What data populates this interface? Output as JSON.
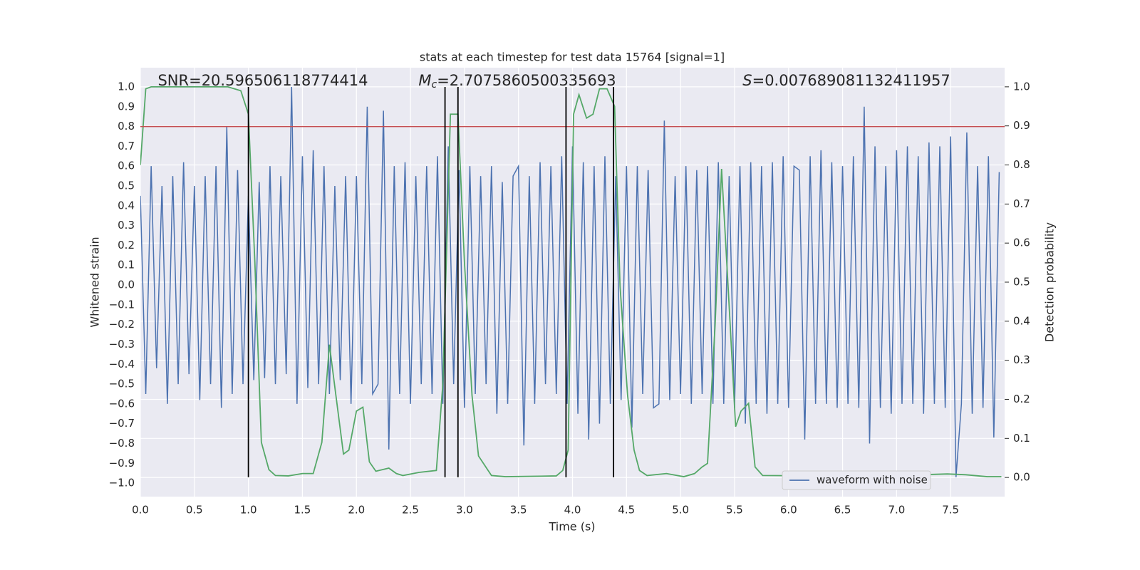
{
  "chart_data": {
    "type": "line",
    "title": "stats at each timestep for test data 15764 [signal=1]",
    "x_label": "Time (s)",
    "y_label": "Whitened strain",
    "y2_label": "Detection probability",
    "xlim": [
      0,
      8.0
    ],
    "ylim": [
      -1.068,
      1.097
    ],
    "y2lim": [
      -0.049,
      1.049
    ],
    "xticks": [
      {
        "value": 0,
        "label": "0.0"
      },
      {
        "value": 0.5,
        "label": "0.5"
      },
      {
        "value": 1,
        "label": "1.0"
      },
      {
        "value": 1.5,
        "label": "1.5"
      },
      {
        "value": 2,
        "label": "2.0"
      },
      {
        "value": 2.5,
        "label": "2.5"
      },
      {
        "value": 3,
        "label": "3.0"
      },
      {
        "value": 3.5,
        "label": "3.5"
      },
      {
        "value": 4,
        "label": "4.0"
      },
      {
        "value": 4.5,
        "label": "4.5"
      },
      {
        "value": 5,
        "label": "5.0"
      },
      {
        "value": 5.5,
        "label": "5.5"
      },
      {
        "value": 6,
        "label": "6.0"
      },
      {
        "value": 6.5,
        "label": "6.5"
      },
      {
        "value": 7,
        "label": "7.0"
      },
      {
        "value": 7.5,
        "label": "7.5"
      }
    ],
    "yticks": [
      {
        "value": -1,
        "label": "−1.0"
      },
      {
        "value": -0.9,
        "label": "−0.9"
      },
      {
        "value": -0.8,
        "label": "−0.8"
      },
      {
        "value": -0.7,
        "label": "−0.7"
      },
      {
        "value": -0.6,
        "label": "−0.6"
      },
      {
        "value": -0.5,
        "label": "−0.5"
      },
      {
        "value": -0.4,
        "label": "−0.4"
      },
      {
        "value": -0.3,
        "label": "−0.3"
      },
      {
        "value": -0.2,
        "label": "−0.2"
      },
      {
        "value": -0.1,
        "label": "−0.1"
      },
      {
        "value": 0,
        "label": "0.0"
      },
      {
        "value": 0.1,
        "label": "0.1"
      },
      {
        "value": 0.2,
        "label": "0.2"
      },
      {
        "value": 0.3,
        "label": "0.3"
      },
      {
        "value": 0.4,
        "label": "0.4"
      },
      {
        "value": 0.5,
        "label": "0.5"
      },
      {
        "value": 0.6,
        "label": "0.6"
      },
      {
        "value": 0.7,
        "label": "0.7"
      },
      {
        "value": 0.8,
        "label": "0.8"
      },
      {
        "value": 0.9,
        "label": "0.9"
      },
      {
        "value": 1,
        "label": "1.0"
      }
    ],
    "y2ticks": [
      {
        "value": 0,
        "label": "0.0"
      },
      {
        "value": 0.1,
        "label": "0.1"
      },
      {
        "value": 0.2,
        "label": "0.2"
      },
      {
        "value": 0.3,
        "label": "0.3"
      },
      {
        "value": 0.4,
        "label": "0.4"
      },
      {
        "value": 0.5,
        "label": "0.5"
      },
      {
        "value": 0.6,
        "label": "0.6"
      },
      {
        "value": 0.7,
        "label": "0.7"
      },
      {
        "value": 0.8,
        "label": "0.8"
      },
      {
        "value": 0.9,
        "label": "0.9"
      },
      {
        "value": 1,
        "label": "1.0"
      }
    ],
    "grid": true,
    "background": "#eaeaf2",
    "legend_loc": "lower right",
    "annotations": [
      {
        "text": "SNR=20.596506118774414"
      },
      {
        "symbol": "M",
        "subscript": "c",
        "text": "=2.7075860500335693"
      },
      {
        "symbol": "S",
        "text": "=0.007689081132411957"
      }
    ],
    "series": [
      {
        "name": "waveform with noise",
        "color": "#4c72b0",
        "x": [
          0,
          0.05,
          0.1,
          0.15,
          0.2,
          0.25,
          0.3,
          0.35,
          0.4,
          0.45,
          0.5,
          0.55,
          0.6,
          0.65,
          0.7,
          0.75,
          0.8,
          0.85,
          0.9,
          0.95,
          1,
          1.05,
          1.1,
          1.15,
          1.2,
          1.25,
          1.3,
          1.35,
          1.4,
          1.45,
          1.5,
          1.55,
          1.6,
          1.65,
          1.7,
          1.75,
          1.8,
          1.85,
          1.9,
          1.95,
          2,
          2.05,
          2.1,
          2.15,
          2.2,
          2.25,
          2.3,
          2.35,
          2.4,
          2.45,
          2.5,
          2.55,
          2.6,
          2.65,
          2.7,
          2.75,
          2.8,
          2.85,
          2.9,
          2.95,
          3,
          3.05,
          3.1,
          3.15,
          3.2,
          3.25,
          3.3,
          3.35,
          3.4,
          3.45,
          3.5,
          3.55,
          3.6,
          3.65,
          3.7,
          3.75,
          3.8,
          3.85,
          3.9,
          3.95,
          4,
          4.05,
          4.1,
          4.15,
          4.2,
          4.25,
          4.3,
          4.35,
          4.4,
          4.45,
          4.5,
          4.55,
          4.6,
          4.65,
          4.7,
          4.75,
          4.8,
          4.85,
          4.9,
          4.95,
          5,
          5.05,
          5.1,
          5.15,
          5.2,
          5.25,
          5.3,
          5.35,
          5.4,
          5.45,
          5.5,
          5.55,
          5.6,
          5.65,
          5.7,
          5.75,
          5.8,
          5.85,
          5.9,
          5.95,
          6,
          6.05,
          6.1,
          6.15,
          6.2,
          6.25,
          6.3,
          6.35,
          6.4,
          6.45,
          6.5,
          6.55,
          6.6,
          6.65,
          6.7,
          6.75,
          6.8,
          6.85,
          6.9,
          6.95,
          7,
          7.05,
          7.1,
          7.15,
          7.2,
          7.25,
          7.3,
          7.35,
          7.4,
          7.45,
          7.5,
          7.55,
          7.6,
          7.65,
          7.7,
          7.75,
          7.8,
          7.85,
          7.9,
          7.95
        ],
        "values": [
          0.45,
          -0.55,
          0.6,
          -0.42,
          0.5,
          -0.6,
          0.55,
          -0.5,
          0.62,
          -0.45,
          0.5,
          -0.58,
          0.55,
          -0.5,
          0.6,
          -0.62,
          0.8,
          -0.55,
          0.58,
          -0.5,
          0.45,
          -0.48,
          0.52,
          -0.47,
          0.6,
          -0.5,
          0.55,
          -0.45,
          1.0,
          -0.6,
          0.65,
          -0.52,
          0.68,
          -0.5,
          0.6,
          -0.55,
          0.5,
          -0.48,
          0.55,
          -0.6,
          0.55,
          -0.5,
          0.9,
          -0.55,
          -0.5,
          0.88,
          -0.83,
          0.6,
          -0.55,
          0.62,
          -0.6,
          0.55,
          -0.5,
          0.6,
          -0.55,
          0.65,
          -0.6,
          0.7,
          -0.5,
          0.58,
          -0.62,
          0.6,
          -0.55,
          0.55,
          -0.5,
          0.6,
          -0.65,
          0.52,
          -0.6,
          0.55,
          0.6,
          -0.81,
          0.55,
          -0.6,
          0.62,
          -0.5,
          0.6,
          -0.55,
          0.65,
          -0.6,
          0.7,
          -0.65,
          0.62,
          -0.78,
          0.6,
          -0.7,
          0.65,
          -0.6,
          0.55,
          -0.58,
          0.6,
          -0.72,
          0.6,
          -0.55,
          0.58,
          -0.62,
          -0.6,
          0.83,
          -0.58,
          0.55,
          -0.55,
          0.6,
          -0.6,
          0.58,
          -0.55,
          0.6,
          -0.6,
          0.62,
          -0.6,
          0.55,
          -0.62,
          0.6,
          -0.7,
          0.62,
          -0.6,
          0.6,
          -0.65,
          0.62,
          -0.6,
          0.65,
          -0.62,
          0.6,
          0.58,
          -0.78,
          0.65,
          -0.6,
          0.68,
          -0.6,
          0.62,
          -0.62,
          0.6,
          -0.6,
          0.65,
          -0.62,
          0.9,
          -0.8,
          0.7,
          -0.62,
          0.6,
          -0.65,
          0.68,
          -0.6,
          0.7,
          -0.6,
          0.65,
          -0.65,
          0.72,
          -0.6,
          0.7,
          -0.62,
          0.75,
          -0.97,
          -0.6,
          0.77,
          -0.65,
          0.6,
          -0.62,
          0.65,
          -0.77,
          0.57
        ]
      },
      {
        "color": "#55a868",
        "axis": "y2",
        "x": [
          0,
          0.05,
          0.1,
          0.68,
          0.81,
          0.93,
          1.0,
          1.06,
          1.12,
          1.19,
          1.25,
          1.37,
          1.5,
          1.6,
          1.68,
          1.75,
          1.81,
          1.88,
          1.93,
          2.0,
          2.06,
          2.12,
          2.18,
          2.3,
          2.37,
          2.43,
          2.58,
          2.74,
          2.8,
          2.87,
          2.94,
          3.0,
          3.07,
          3.13,
          3.25,
          3.38,
          3.85,
          3.91,
          3.96,
          4.01,
          4.06,
          4.13,
          4.19,
          4.25,
          4.32,
          4.39,
          4.44,
          4.51,
          4.57,
          4.62,
          4.69,
          4.87,
          5.03,
          5.13,
          5.2,
          5.25,
          5.32,
          5.38,
          5.45,
          5.51,
          5.56,
          5.63,
          5.69,
          5.76,
          6.29,
          6.39,
          6.45,
          6.52,
          6.95,
          7.01,
          7.47,
          7.64,
          7.84,
          7.97
        ],
        "values": [
          0.8,
          0.995,
          1.0,
          1.0,
          1.0,
          0.99,
          0.93,
          0.55,
          0.09,
          0.02,
          0.005,
          0.004,
          0.01,
          0.01,
          0.09,
          0.34,
          0.21,
          0.06,
          0.07,
          0.17,
          0.18,
          0.04,
          0.016,
          0.024,
          0.01,
          0.005,
          0.013,
          0.018,
          0.24,
          0.93,
          0.93,
          0.55,
          0.21,
          0.055,
          0.005,
          0.002,
          0.004,
          0.018,
          0.07,
          0.93,
          0.98,
          0.92,
          0.93,
          0.995,
          0.995,
          0.95,
          0.49,
          0.21,
          0.07,
          0.018,
          0.005,
          0.01,
          0.002,
          0.01,
          0.027,
          0.036,
          0.39,
          0.79,
          0.44,
          0.13,
          0.17,
          0.19,
          0.027,
          0.005,
          0.004,
          0.005,
          0.007,
          0.004,
          0.004,
          0.005,
          0.009,
          0.007,
          0.002,
          0.002
        ]
      }
    ],
    "hline": {
      "y": 0.8,
      "color": "#c44e52"
    },
    "vlines": {
      "x": [
        1.0,
        2.82,
        2.94,
        3.94,
        4.38
      ],
      "ymin": -0.97,
      "ymax": 1.0,
      "color": "#000000"
    }
  }
}
